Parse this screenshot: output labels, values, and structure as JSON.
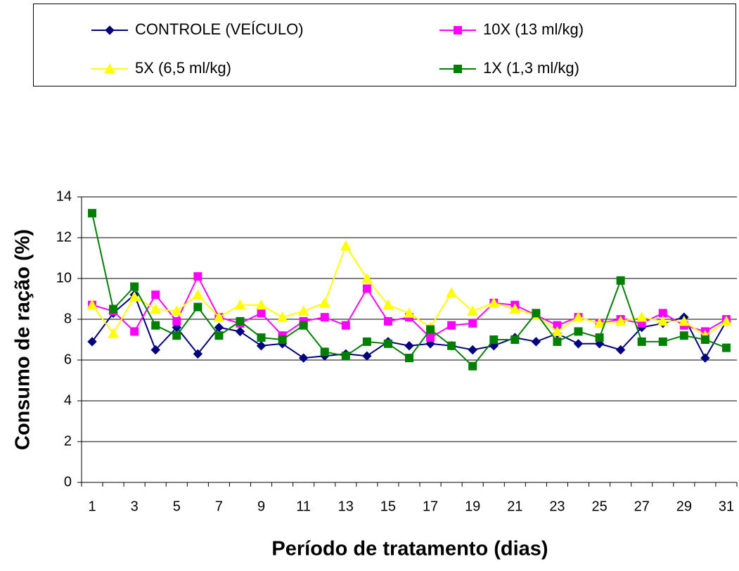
{
  "chart_data": {
    "type": "line",
    "x_label": "Período de tratamento (dias)",
    "y_label": "Consumo de ração (%)",
    "categories": [
      1,
      null,
      3,
      null,
      5,
      null,
      7,
      null,
      9,
      null,
      11,
      null,
      13,
      null,
      15,
      null,
      17,
      null,
      19,
      null,
      21,
      null,
      23,
      null,
      25,
      null,
      27,
      null,
      29,
      null,
      31
    ],
    "ylim": [
      0,
      14
    ],
    "yticks": [
      0,
      2,
      4,
      6,
      8,
      10,
      12,
      14
    ],
    "grid": true,
    "series": [
      {
        "name": "CONTROLE (VEÍCULO)",
        "color": "#000080",
        "marker": "diamond",
        "values": [
          6.9,
          8.3,
          9.2,
          6.5,
          7.6,
          6.3,
          7.6,
          7.4,
          6.7,
          6.8,
          6.1,
          6.2,
          6.3,
          6.2,
          6.9,
          6.7,
          6.8,
          6.7,
          6.5,
          6.7,
          7.1,
          6.9,
          7.3,
          6.8,
          6.8,
          6.5,
          7.6,
          7.8,
          8.1,
          6.1,
          7.9
        ]
      },
      {
        "name": "10X (13 ml/kg)",
        "color": "#ff00ff",
        "marker": "square",
        "values": [
          8.7,
          8.4,
          7.4,
          9.2,
          7.9,
          10.1,
          8.1,
          7.8,
          8.3,
          7.2,
          7.9,
          8.1,
          7.7,
          9.5,
          7.9,
          8.1,
          7.1,
          7.7,
          7.8,
          8.8,
          8.7,
          8.2,
          7.7,
          8.1,
          7.8,
          8.0,
          7.8,
          8.3,
          7.7,
          7.4,
          8.0
        ]
      },
      {
        "name": "5X (6,5 ml/kg)",
        "color": "#ffff00",
        "marker": "triangle",
        "values": [
          8.7,
          7.3,
          9.1,
          8.5,
          8.4,
          9.2,
          8.1,
          8.7,
          8.7,
          8.1,
          8.4,
          8.8,
          11.6,
          10.0,
          8.7,
          8.3,
          7.6,
          9.3,
          8.4,
          8.8,
          8.5,
          8.2,
          7.4,
          8.1,
          7.8,
          7.9,
          8.1,
          7.9,
          7.9,
          7.2,
          7.9
        ]
      },
      {
        "name": "1X (1,3 ml/kg)",
        "color": "#008000",
        "marker": "square",
        "values": [
          13.2,
          8.5,
          9.6,
          7.7,
          7.2,
          8.6,
          7.2,
          7.9,
          7.1,
          7.0,
          7.7,
          6.4,
          6.2,
          6.9,
          6.8,
          6.1,
          7.5,
          6.7,
          5.7,
          7.0,
          7.0,
          8.3,
          6.9,
          7.4,
          7.1,
          9.9,
          6.9,
          6.9,
          7.2,
          7.0,
          6.6
        ]
      }
    ]
  }
}
